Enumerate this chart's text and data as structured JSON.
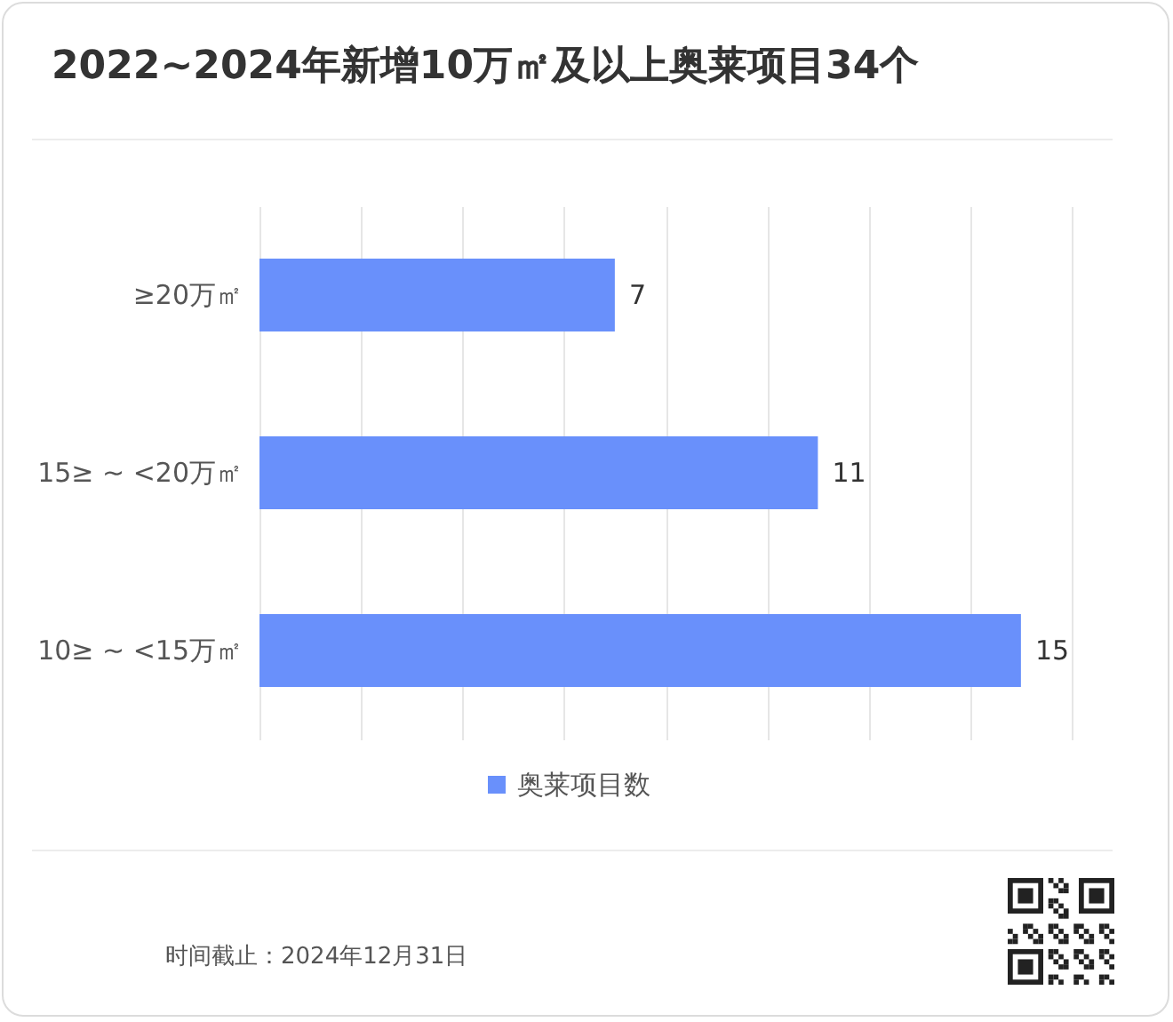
{
  "chart_data": {
    "type": "bar",
    "orientation": "horizontal",
    "title": "2022~2024年新增10万㎡及以上奥莱项目34个",
    "categories": [
      "≥20万㎡",
      "15≥ ~ <20万㎡",
      "10≥ ~ <15万㎡"
    ],
    "series": [
      {
        "name": "奥莱项目数",
        "color": "#6990fb",
        "values": [
          7,
          11,
          15
        ]
      }
    ],
    "xlim": [
      0,
      16
    ],
    "xticks": [
      0,
      2,
      4,
      6,
      8,
      10,
      12,
      14,
      16
    ],
    "grid": "x",
    "tick_labels": "y",
    "data_labels": true,
    "legend": "bottom",
    "annotations": [
      "时间截止：2024年12月31日"
    ]
  }
}
